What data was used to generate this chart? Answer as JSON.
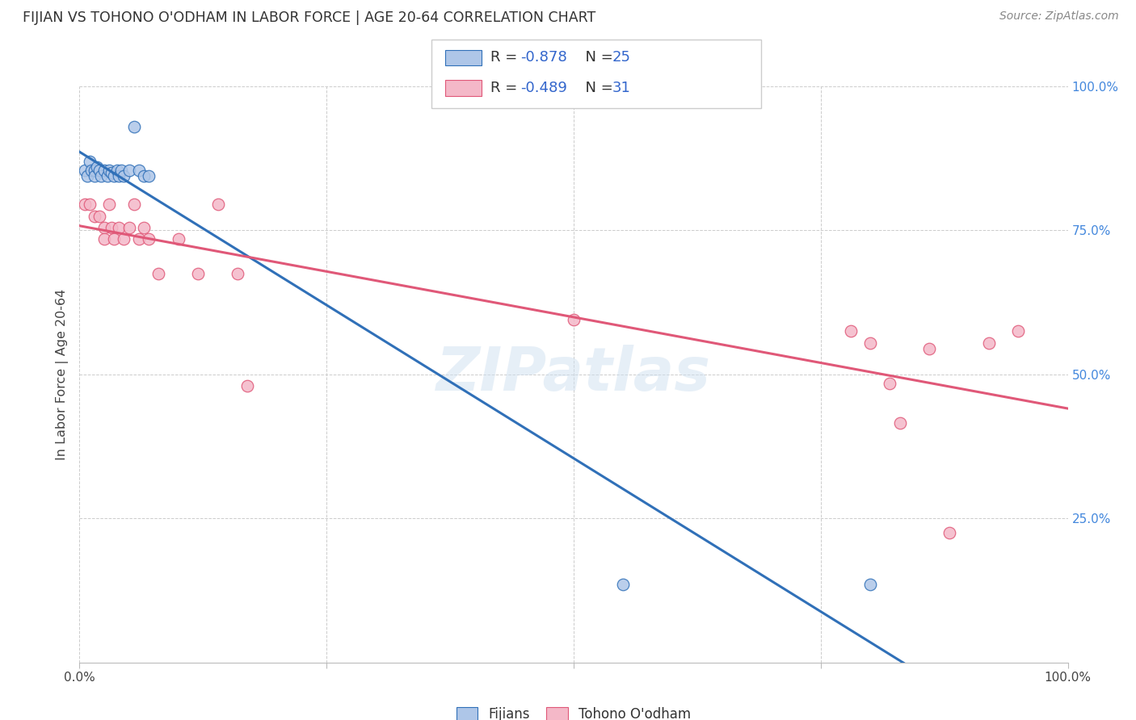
{
  "title": "FIJIAN VS TOHONO O'ODHAM IN LABOR FORCE | AGE 20-64 CORRELATION CHART",
  "source": "Source: ZipAtlas.com",
  "ylabel": "In Labor Force | Age 20-64",
  "watermark": "ZIPatlas",
  "fijian_R": -0.878,
  "fijian_N": 25,
  "tohono_R": -0.489,
  "tohono_N": 31,
  "fijian_color": "#aec6e8",
  "tohono_color": "#f4b8c8",
  "fijian_line_color": "#3070b8",
  "tohono_line_color": "#e05878",
  "xlim": [
    0.0,
    1.0
  ],
  "ylim": [
    0.0,
    1.0
  ],
  "xticks": [
    0.0,
    0.25,
    0.5,
    0.75,
    1.0
  ],
  "yticks": [
    0.0,
    0.25,
    0.5,
    0.75,
    1.0
  ],
  "xticklabels": [
    "0.0%",
    "",
    "",
    "",
    "100.0%"
  ],
  "yticklabels_right": [
    "",
    "25.0%",
    "50.0%",
    "75.0%",
    "100.0%"
  ],
  "fijian_x": [
    0.005,
    0.008,
    0.01,
    0.012,
    0.015,
    0.015,
    0.018,
    0.02,
    0.022,
    0.025,
    0.028,
    0.03,
    0.032,
    0.035,
    0.038,
    0.04,
    0.042,
    0.045,
    0.05,
    0.055,
    0.06,
    0.065,
    0.07,
    0.55,
    0.8
  ],
  "fijian_y": [
    0.855,
    0.845,
    0.87,
    0.855,
    0.855,
    0.845,
    0.86,
    0.855,
    0.845,
    0.855,
    0.845,
    0.855,
    0.85,
    0.845,
    0.855,
    0.845,
    0.855,
    0.845,
    0.855,
    0.93,
    0.855,
    0.845,
    0.845,
    0.135,
    0.135
  ],
  "tohono_x": [
    0.005,
    0.01,
    0.015,
    0.02,
    0.025,
    0.025,
    0.03,
    0.032,
    0.035,
    0.04,
    0.045,
    0.05,
    0.055,
    0.06,
    0.065,
    0.07,
    0.08,
    0.1,
    0.12,
    0.14,
    0.16,
    0.17,
    0.5,
    0.78,
    0.8,
    0.82,
    0.83,
    0.86,
    0.88,
    0.92,
    0.95
  ],
  "tohono_y": [
    0.795,
    0.795,
    0.775,
    0.775,
    0.755,
    0.735,
    0.795,
    0.755,
    0.735,
    0.755,
    0.735,
    0.755,
    0.795,
    0.735,
    0.755,
    0.735,
    0.675,
    0.735,
    0.675,
    0.795,
    0.675,
    0.48,
    0.595,
    0.575,
    0.555,
    0.485,
    0.415,
    0.545,
    0.225,
    0.555,
    0.575
  ],
  "background_color": "#ffffff",
  "grid_color": "#cccccc"
}
